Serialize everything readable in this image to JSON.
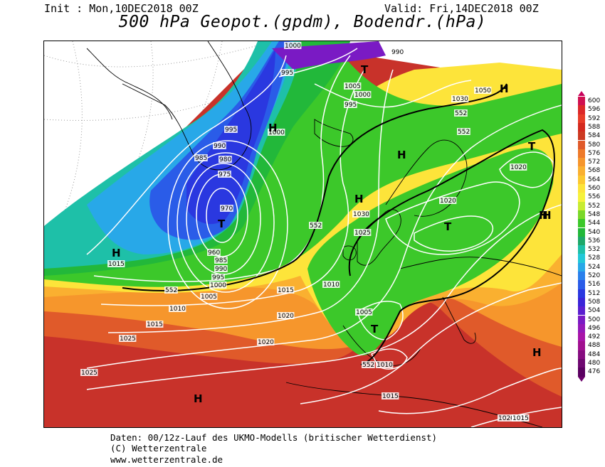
{
  "header": {
    "init": "Init : Mon,10DEC2018 00Z",
    "valid": "Valid: Fri,14DEC2018 00Z",
    "title": "500 hPa Geopot.(gpdm), Bodendr.(hPa)"
  },
  "footer": {
    "line1": "Daten: 00/12z-Lauf des UKMO-Modells (britischer Wetterdienst)",
    "line2": "(C) Wetterzentrale",
    "line3": "www.wetterzentrale.de"
  },
  "legend": {
    "values": [
      "600",
      "596",
      "592",
      "588",
      "584",
      "580",
      "576",
      "572",
      "568",
      "564",
      "560",
      "556",
      "552",
      "548",
      "544",
      "540",
      "536",
      "532",
      "528",
      "524",
      "520",
      "516",
      "512",
      "508",
      "504",
      "500",
      "496",
      "492",
      "488",
      "484",
      "480",
      "476"
    ],
    "colors": [
      "#d01050",
      "#dc2828",
      "#e83c28",
      "#d42a1e",
      "#cc3a22",
      "#e05a2a",
      "#ee7a2a",
      "#f6962c",
      "#fab030",
      "#fcc830",
      "#fde43a",
      "#f6f23c",
      "#c8ec32",
      "#7ad82a",
      "#3cc82a",
      "#22b83a",
      "#1ea86a",
      "#1ec0a8",
      "#22c8d8",
      "#28a8e8",
      "#2a80ec",
      "#2a5ce8",
      "#2a38e0",
      "#3a24d8",
      "#5a1ed0",
      "#7a1ac4",
      "#9418b8",
      "#a814a8",
      "#a01090",
      "#860c80",
      "#6e0870",
      "#5a0060"
    ]
  },
  "map": {
    "isobar_labels": [
      "1000",
      "995",
      "990",
      "1005",
      "1000",
      "995",
      "1030",
      "1050",
      "552",
      "552",
      "995",
      "1000",
      "990",
      "985",
      "980",
      "975",
      "970",
      "1020",
      "1020",
      "1030",
      "1025",
      "552",
      "960",
      "985",
      "990",
      "995",
      "1000",
      "552",
      "1005",
      "1015",
      "1010",
      "1010",
      "1015",
      "1020",
      "1005",
      "1025",
      "1020",
      "1025",
      "552",
      "1010",
      "1015",
      "1020",
      "1015",
      "1020",
      "1015"
    ],
    "pressure_systems": [
      "T",
      "H",
      "H",
      "T",
      "H",
      "H",
      "T",
      "T",
      "T",
      "H",
      "H",
      "H",
      "H",
      "H"
    ]
  }
}
